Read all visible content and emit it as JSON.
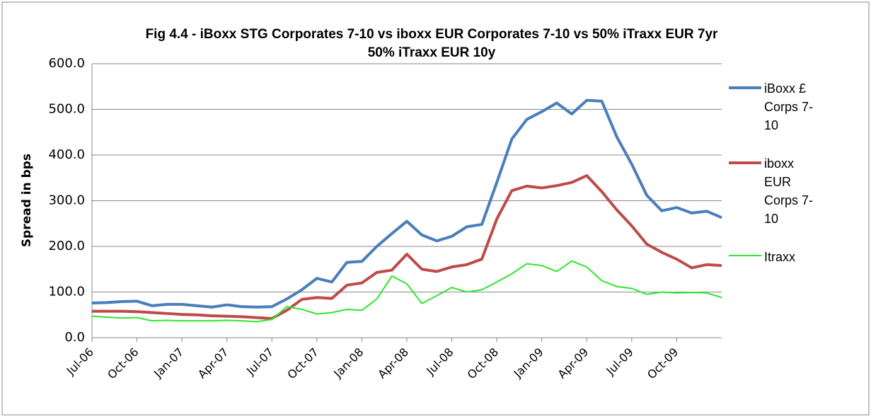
{
  "chart_data": {
    "type": "line",
    "title": "Fig 4.4 - iBoxx STG Corporates 7-10 vs iboxx EUR Corporates 7-10 vs 50% iTraxx EUR 7yr 50% iTraxx EUR 10y",
    "y_label": "Spread in bps",
    "categories": [
      "Jul-06",
      null,
      null,
      "Oct-06",
      null,
      null,
      "Jan-07",
      null,
      null,
      "Apr-07",
      null,
      null,
      "Jul-07",
      null,
      null,
      "Oct-07",
      null,
      null,
      "Jan-08",
      null,
      null,
      "Apr-08",
      null,
      null,
      "Jul-08",
      null,
      null,
      "Oct-08",
      null,
      null,
      "Jan-09",
      null,
      null,
      "Apr-09",
      null,
      null,
      "Jul-09",
      null,
      null,
      "Oct-09",
      null,
      null,
      null
    ],
    "series": [
      {
        "name": "iBoxx £ Corps 7-10",
        "color": "#4a7ebb",
        "values": [
          76,
          77,
          79,
          80,
          70,
          73,
          73,
          70,
          67,
          72,
          68,
          67,
          68,
          85,
          105,
          130,
          122,
          165,
          167,
          200,
          228,
          255,
          225,
          212,
          222,
          243,
          248,
          340,
          435,
          478,
          495,
          514,
          490,
          520,
          518,
          440,
          380,
          312,
          278,
          285,
          273,
          277,
          263
        ]
      },
      {
        "name": "iboxx EUR Corps 7-10",
        "color": "#be4b48",
        "values": [
          58,
          58,
          58,
          57,
          55,
          53,
          51,
          50,
          48,
          47,
          46,
          44,
          42,
          60,
          84,
          88,
          86,
          115,
          120,
          143,
          148,
          183,
          150,
          145,
          155,
          160,
          172,
          260,
          322,
          332,
          328,
          333,
          340,
          355,
          320,
          280,
          245,
          205,
          187,
          172,
          153,
          160,
          158
        ]
      },
      {
        "name": "Itraxx",
        "color": "#2ee82e",
        "values": [
          47,
          45,
          43,
          44,
          37,
          38,
          37,
          37,
          37,
          38,
          37,
          35,
          40,
          68,
          62,
          52,
          55,
          62,
          60,
          85,
          135,
          118,
          75,
          92,
          110,
          100,
          105,
          122,
          140,
          162,
          158,
          145,
          168,
          155,
          125,
          112,
          108,
          95,
          100,
          98,
          99,
          98,
          88
        ]
      }
    ],
    "ylim": [
      0,
      600
    ],
    "yticks": [
      {
        "value": 0,
        "label": "0.0"
      },
      {
        "value": 100,
        "label": "100.0"
      },
      {
        "value": 200,
        "label": "200.0"
      },
      {
        "value": 300,
        "label": "300.0"
      },
      {
        "value": 400,
        "label": "400.0"
      },
      {
        "value": 500,
        "label": "500.0"
      },
      {
        "value": 600,
        "label": "600.0"
      }
    ],
    "grid": true
  }
}
